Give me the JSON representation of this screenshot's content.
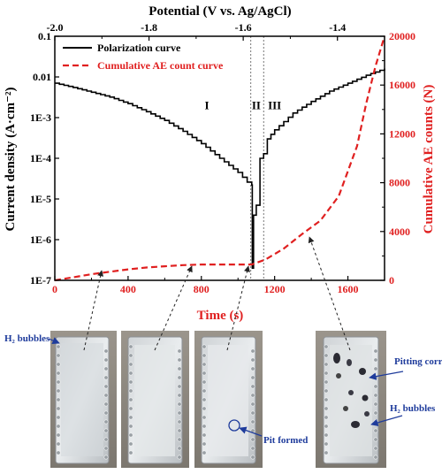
{
  "chart_data": {
    "type": "line",
    "title": "",
    "x_bottom": {
      "label": "Time (s)",
      "range": [
        0,
        1800
      ],
      "ticks": [
        0,
        400,
        800,
        1200,
        1600
      ],
      "tick_labels": [
        "0",
        "400",
        "800",
        "1200",
        "1600"
      ],
      "color": "#e02020"
    },
    "x_top": {
      "label": "Potential (V vs. Ag/AgCl)",
      "range": [
        -2.0,
        -1.3
      ],
      "ticks": [
        -2.0,
        -1.8,
        -1.6,
        -1.4
      ],
      "tick_labels": [
        "-2.0",
        "-1.8",
        "-1.6",
        "-1.4"
      ]
    },
    "y_left": {
      "label": "Current density (A·cm⁻²)",
      "scale": "log",
      "range": [
        1e-07,
        0.1
      ],
      "ticks": [
        1e-07,
        1e-06,
        1e-05,
        0.0001,
        0.001,
        0.01,
        0.1
      ],
      "tick_labels": [
        "1E-7",
        "1E-6",
        "1E-5",
        "1E-4",
        "1E-3",
        "0.01",
        "0.1"
      ]
    },
    "y_right": {
      "label": "Cumulative AE counts (N)",
      "range": [
        0,
        20000
      ],
      "ticks": [
        0,
        4000,
        8000,
        12000,
        16000,
        20000
      ],
      "tick_labels": [
        "0",
        "4000",
        "8000",
        "12000",
        "16000",
        "20000"
      ],
      "color": "#e02020"
    },
    "series": [
      {
        "name": "Polarization curve",
        "axis": "y_left",
        "style": "solid",
        "color": "#000000",
        "x": [
          0,
          100,
          200,
          300,
          400,
          500,
          600,
          700,
          800,
          900,
          1000,
          1050,
          1075,
          1078,
          1085,
          1100,
          1120,
          1140,
          1160,
          1200,
          1250,
          1300,
          1400,
          1500,
          1600,
          1700,
          1800
        ],
        "y": [
          0.007,
          0.0055,
          0.0042,
          0.0032,
          0.0022,
          0.0014,
          0.00085,
          0.00046,
          0.00023,
          0.0001,
          4.5e-05,
          2.6e-05,
          2.2e-05,
          2e-07,
          4e-06,
          7e-06,
          0.0001,
          0.00013,
          0.0003,
          0.0005,
          0.0008,
          0.0013,
          0.0025,
          0.0045,
          0.007,
          0.011,
          0.016
        ]
      },
      {
        "name": "Cumulative AE count curve",
        "axis": "y_right",
        "style": "dashed",
        "color": "#e02020",
        "x": [
          0,
          100,
          200,
          300,
          400,
          500,
          600,
          700,
          800,
          900,
          1000,
          1075,
          1150,
          1250,
          1350,
          1450,
          1550,
          1650,
          1700,
          1750,
          1800
        ],
        "y": [
          0,
          250,
          500,
          700,
          900,
          1050,
          1150,
          1250,
          1300,
          1300,
          1300,
          1300,
          1700,
          2600,
          3800,
          4900,
          6900,
          11000,
          14500,
          17500,
          20000
        ]
      }
    ],
    "regions": {
      "boundaries_time": [
        1070,
        1140
      ],
      "labels": [
        {
          "text": "I",
          "x": 830,
          "y": 0.0016
        },
        {
          "text": "II",
          "x": 1100,
          "y": 0.0016
        },
        {
          "text": "III",
          "x": 1200,
          "y": 0.0016
        }
      ]
    },
    "legend": {
      "placement": "top-left",
      "entries": [
        "Polarization curve",
        "Cumulative AE count curve"
      ]
    },
    "grid": false
  },
  "photos": {
    "notes": {
      "h2_bubbles_left": "H₂ bubbles",
      "pit_formed": "Pit formed",
      "pitting_corrosion": "Pitting corrosion",
      "h2_bubbles_right": "H₂ bubbles"
    }
  }
}
